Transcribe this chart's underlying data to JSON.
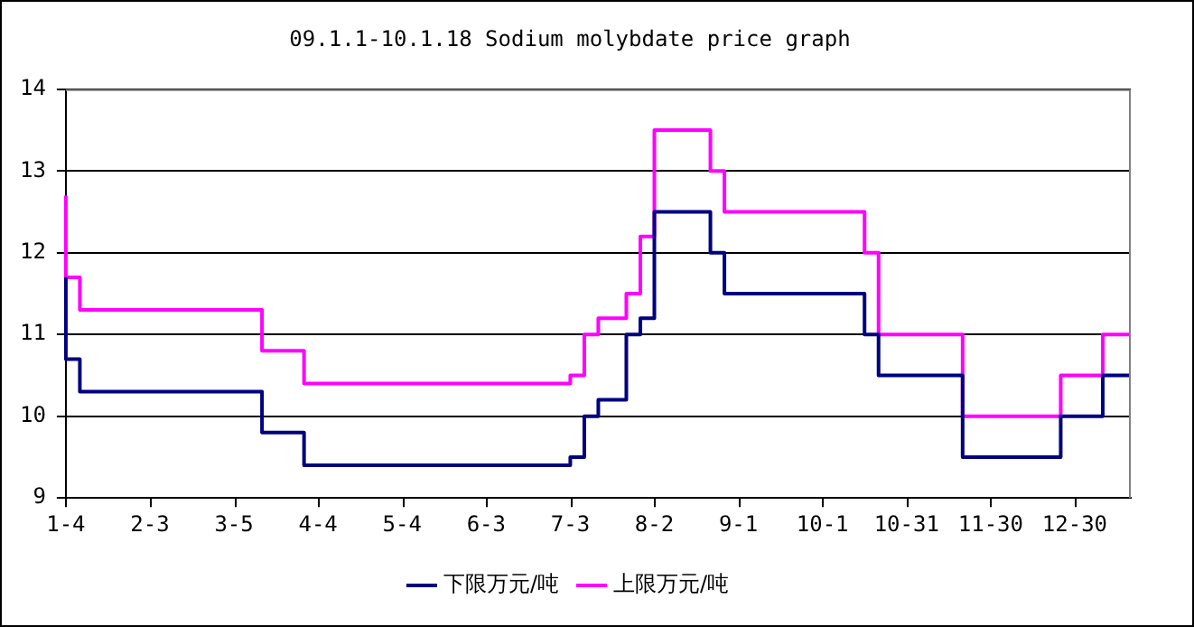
{
  "chart_data": {
    "type": "step",
    "title": "09.1.1-10.1.18 Sodium molybdate price graph",
    "categories": [
      "1-4",
      null,
      null,
      null,
      null,
      null,
      "2-3",
      null,
      null,
      null,
      null,
      null,
      "3-5",
      null,
      null,
      null,
      null,
      null,
      "4-4",
      null,
      null,
      null,
      null,
      null,
      "5-4",
      null,
      null,
      null,
      null,
      null,
      "6-3",
      null,
      null,
      null,
      null,
      null,
      "7-3",
      null,
      null,
      null,
      null,
      null,
      "8-2",
      null,
      null,
      null,
      null,
      null,
      "9-1",
      null,
      null,
      null,
      null,
      null,
      "10-1",
      null,
      null,
      null,
      null,
      null,
      "10-31",
      null,
      null,
      null,
      null,
      null,
      "11-30",
      null,
      null,
      null,
      null,
      null,
      "12-30",
      null,
      null,
      null,
      null
    ],
    "series": [
      {
        "name": "下限万元/吨",
        "color": "#000080",
        "values": [
          11.7,
          10.7,
          10.3,
          10.3,
          10.3,
          10.3,
          10.3,
          10.3,
          10.3,
          10.3,
          10.3,
          10.3,
          10.3,
          10.3,
          10.3,
          9.8,
          9.8,
          9.8,
          9.4,
          9.4,
          9.4,
          9.4,
          9.4,
          9.4,
          9.4,
          9.4,
          9.4,
          9.4,
          9.4,
          9.4,
          9.4,
          9.4,
          9.4,
          9.4,
          9.4,
          9.4,
          9.4,
          9.5,
          10.0,
          10.2,
          10.2,
          11.0,
          11.2,
          12.5,
          12.5,
          12.5,
          12.5,
          12.0,
          11.5,
          11.5,
          11.5,
          11.5,
          11.5,
          11.5,
          11.5,
          11.5,
          11.5,
          11.5,
          11.0,
          10.5,
          10.5,
          10.5,
          10.5,
          10.5,
          10.5,
          9.5,
          9.5,
          9.5,
          9.5,
          9.5,
          9.5,
          9.5,
          10.0,
          10.0,
          10.0,
          10.5,
          10.5
        ]
      },
      {
        "name": "上限万元/吨",
        "color": "#ff00ff",
        "values": [
          12.7,
          11.7,
          11.3,
          11.3,
          11.3,
          11.3,
          11.3,
          11.3,
          11.3,
          11.3,
          11.3,
          11.3,
          11.3,
          11.3,
          11.3,
          10.8,
          10.8,
          10.8,
          10.4,
          10.4,
          10.4,
          10.4,
          10.4,
          10.4,
          10.4,
          10.4,
          10.4,
          10.4,
          10.4,
          10.4,
          10.4,
          10.4,
          10.4,
          10.4,
          10.4,
          10.4,
          10.4,
          10.5,
          11.0,
          11.2,
          11.2,
          11.5,
          12.2,
          13.5,
          13.5,
          13.5,
          13.5,
          13.0,
          12.5,
          12.5,
          12.5,
          12.5,
          12.5,
          12.5,
          12.5,
          12.5,
          12.5,
          12.5,
          12.0,
          11.0,
          11.0,
          11.0,
          11.0,
          11.0,
          11.0,
          10.0,
          10.0,
          10.0,
          10.0,
          10.0,
          10.0,
          10.0,
          10.5,
          10.5,
          10.5,
          11.0,
          11.0
        ]
      }
    ],
    "ylim": [
      9,
      14
    ],
    "yticks": [
      9,
      10,
      11,
      12,
      13,
      14
    ],
    "grid": "y",
    "legend": "bottom"
  }
}
